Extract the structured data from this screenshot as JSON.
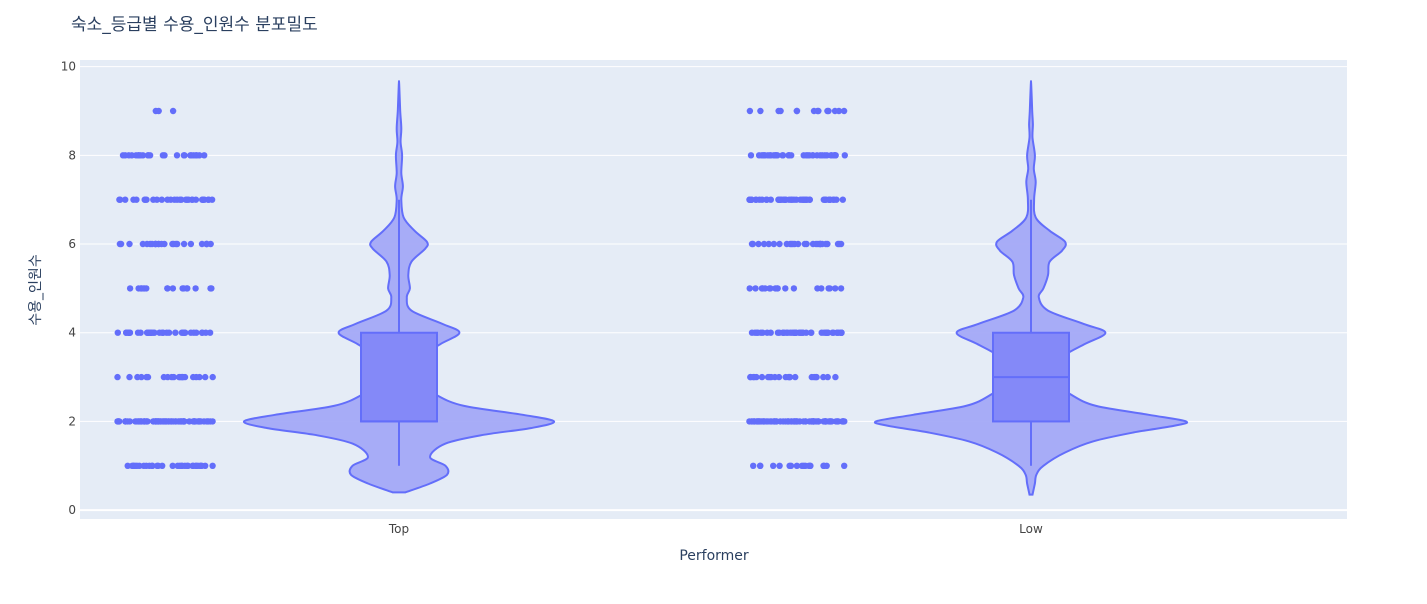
{
  "chart_data": {
    "type": "violin",
    "title": "숙소_등급별 수용_인원수 분포밀도",
    "xlabel": "Performer",
    "ylabel": "수용_인원수",
    "categories": [
      "Top",
      "Low"
    ],
    "ylim": [
      -0.2,
      10.15
    ],
    "yticks": [
      0,
      2,
      4,
      6,
      8,
      10
    ],
    "grid": true,
    "points_shown": "all (jittered strip left of each violin)",
    "distinct_point_values": [
      1,
      2,
      3,
      4,
      5,
      6,
      7,
      8,
      9
    ],
    "series": [
      {
        "category": "Top",
        "box": {
          "min": 1,
          "q1": 2,
          "median": 2,
          "q3": 4,
          "max": 7
        },
        "data_min": 1,
        "data_max": 9,
        "density_profile": [
          [
            0.4,
            0.04
          ],
          [
            0.6,
            0.2
          ],
          [
            0.8,
            0.31
          ],
          [
            1.0,
            0.3
          ],
          [
            1.2,
            0.2
          ],
          [
            1.5,
            0.3
          ],
          [
            1.7,
            0.55
          ],
          [
            1.85,
            0.85
          ],
          [
            2.0,
            1.0
          ],
          [
            2.15,
            0.8
          ],
          [
            2.35,
            0.42
          ],
          [
            2.6,
            0.24
          ],
          [
            2.9,
            0.13
          ],
          [
            3.2,
            0.1
          ],
          [
            3.5,
            0.16
          ],
          [
            3.75,
            0.27
          ],
          [
            4.0,
            0.39
          ],
          [
            4.2,
            0.28
          ],
          [
            4.5,
            0.08
          ],
          [
            4.8,
            0.05
          ],
          [
            5.0,
            0.07
          ],
          [
            5.3,
            0.06
          ],
          [
            5.6,
            0.08
          ],
          [
            5.9,
            0.17
          ],
          [
            6.05,
            0.18
          ],
          [
            6.3,
            0.1
          ],
          [
            6.6,
            0.03
          ],
          [
            7.0,
            0.015
          ],
          [
            7.3,
            0.025
          ],
          [
            7.6,
            0.015
          ],
          [
            8.0,
            0.02
          ],
          [
            8.3,
            0.01
          ],
          [
            8.6,
            0.015
          ],
          [
            9.0,
            0.008
          ],
          [
            9.6,
            0.001
          ]
        ]
      },
      {
        "category": "Low",
        "box": {
          "min": 1,
          "q1": 2,
          "median": 3,
          "q3": 4,
          "max": 7
        },
        "data_min": 1,
        "data_max": 9,
        "density_profile": [
          [
            0.35,
            0.01
          ],
          [
            0.6,
            0.025
          ],
          [
            0.8,
            0.035
          ],
          [
            1.0,
            0.08
          ],
          [
            1.3,
            0.22
          ],
          [
            1.55,
            0.4
          ],
          [
            1.75,
            0.66
          ],
          [
            1.9,
            0.92
          ],
          [
            2.0,
            1.0
          ],
          [
            2.15,
            0.76
          ],
          [
            2.35,
            0.42
          ],
          [
            2.6,
            0.26
          ],
          [
            2.9,
            0.15
          ],
          [
            3.2,
            0.13
          ],
          [
            3.5,
            0.22
          ],
          [
            3.75,
            0.35
          ],
          [
            4.0,
            0.48
          ],
          [
            4.2,
            0.34
          ],
          [
            4.5,
            0.11
          ],
          [
            4.8,
            0.05
          ],
          [
            5.0,
            0.08
          ],
          [
            5.3,
            0.11
          ],
          [
            5.6,
            0.12
          ],
          [
            5.85,
            0.2
          ],
          [
            6.05,
            0.22
          ],
          [
            6.3,
            0.12
          ],
          [
            6.6,
            0.03
          ],
          [
            7.0,
            0.02
          ],
          [
            7.4,
            0.03
          ],
          [
            7.7,
            0.018
          ],
          [
            8.0,
            0.025
          ],
          [
            8.4,
            0.01
          ],
          [
            8.7,
            0.012
          ],
          [
            9.0,
            0.008
          ],
          [
            9.6,
            0.001
          ]
        ]
      }
    ],
    "colors": {
      "violin_fill": "#a3a9f7",
      "violin_line": "#636efa",
      "box_fill": "#8489f8",
      "points": "#636efa",
      "plot_bg": "#e5ecf6",
      "grid": "#ffffff",
      "text": "#2a3f5f",
      "tick_text": "#444444"
    }
  }
}
